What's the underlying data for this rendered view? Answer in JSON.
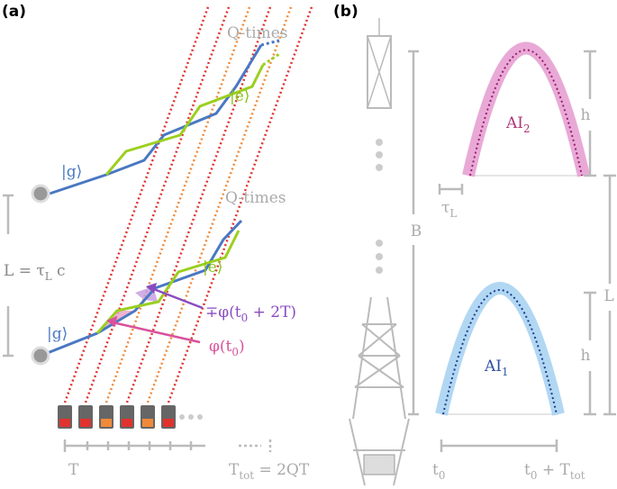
{
  "panel_a": {
    "label": "(a)",
    "q_times_top": "Q-times",
    "q_times_bottom": "Q-times",
    "e_top": "|e⟩",
    "e_bottom": "|e⟩",
    "g_top": "|g⟩",
    "g_bottom": "|g⟩",
    "baseline": [
      "L = τ",
      "L",
      " c"
    ],
    "phase_late": [
      "∓φ(t",
      "0",
      " + 2T)"
    ],
    "phase_early": [
      "φ(t",
      "0",
      ")"
    ],
    "period": "T",
    "total_time": [
      "T",
      "tot",
      " = 2QT"
    ]
  },
  "panel_b": {
    "label": "(b)",
    "ai_top": [
      "AI",
      "2"
    ],
    "ai_bottom": [
      "AI",
      "1"
    ],
    "height_top": "h",
    "height_bottom": "h",
    "tau": [
      "τ",
      "L"
    ],
    "tower_height": "B",
    "separation": "L",
    "start": [
      "t",
      "0"
    ],
    "end": [
      "t",
      "0",
      " + T",
      "tot"
    ]
  }
}
